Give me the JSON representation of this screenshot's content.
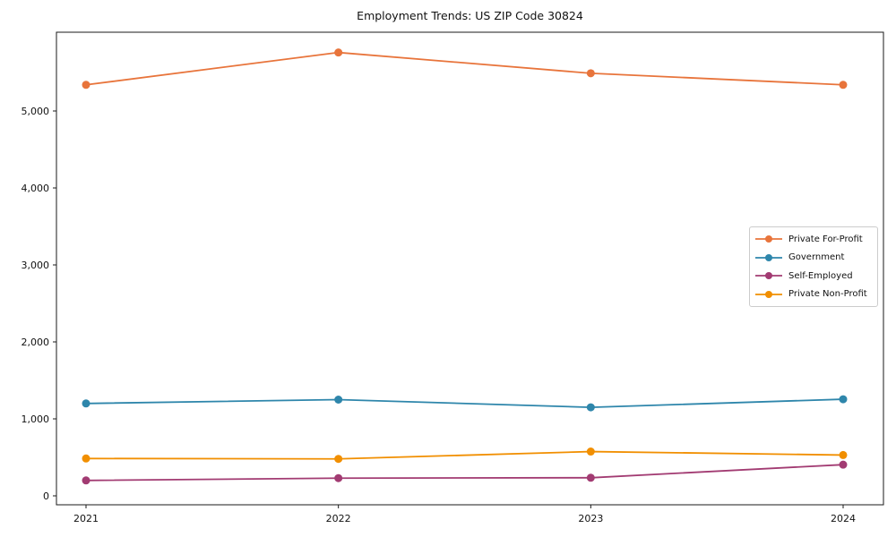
{
  "figure": {
    "background": "#ffffff"
  },
  "chart_data": {
    "type": "line",
    "title": "Employment Trends: US ZIP Code 30824",
    "xlabel": "",
    "ylabel": "",
    "x": [
      2021,
      2022,
      2023,
      2024
    ],
    "x_tick_labels": [
      "2021",
      "2022",
      "2023",
      "2024"
    ],
    "y_ticks": [
      0,
      1000,
      2000,
      3000,
      4000,
      5000
    ],
    "y_tick_labels": [
      "0",
      "1,000",
      "2,000",
      "3,000",
      "4,000",
      "5,000"
    ],
    "ylim": [
      -120,
      6020
    ],
    "grid": false,
    "legend_position": "center-right",
    "marker": "circle",
    "series": [
      {
        "name": "Private For-Profit",
        "color": "#E8743B",
        "values": [
          5340,
          5760,
          5490,
          5340
        ]
      },
      {
        "name": "Government",
        "color": "#2E86AB",
        "values": [
          1200,
          1250,
          1150,
          1255
        ]
      },
      {
        "name": "Self-Employed",
        "color": "#A23B72",
        "values": [
          200,
          230,
          235,
          405
        ]
      },
      {
        "name": "Private Non-Profit",
        "color": "#F18F01",
        "values": [
          485,
          480,
          575,
          530
        ]
      }
    ]
  }
}
